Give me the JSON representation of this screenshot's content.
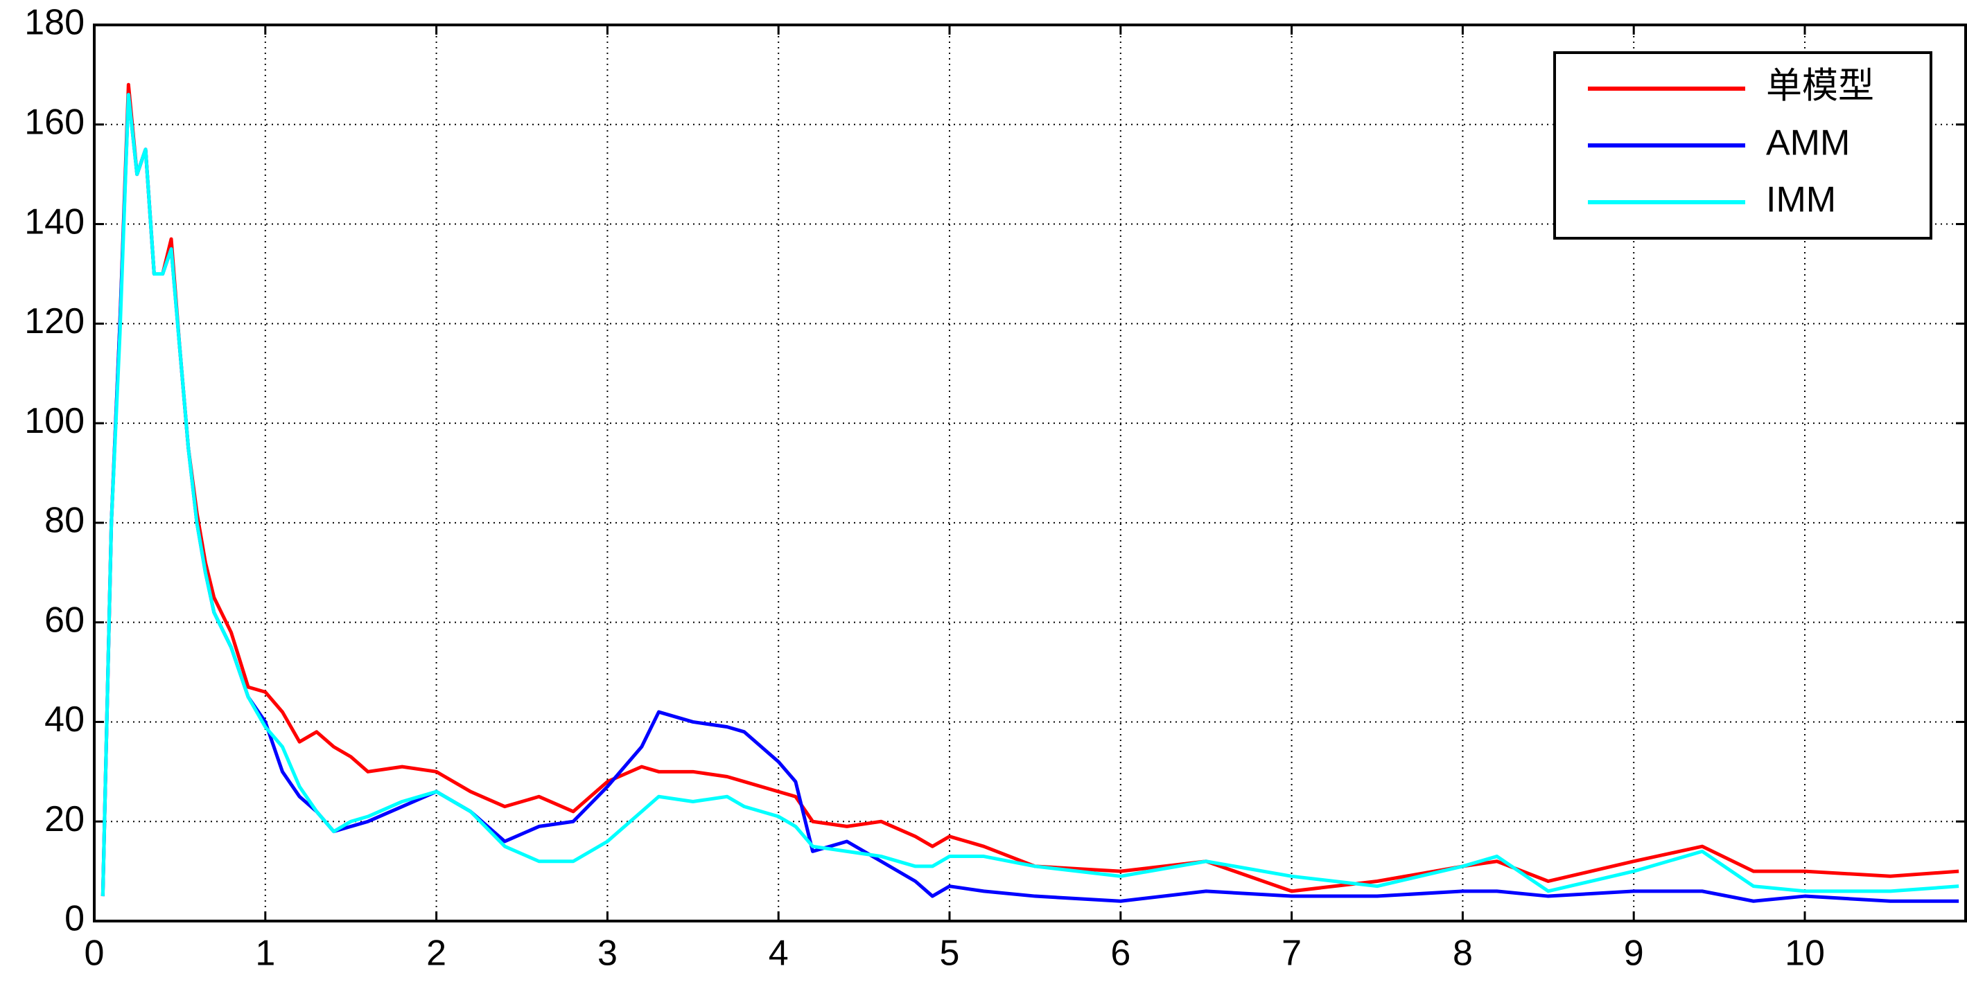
{
  "chart_data": {
    "type": "line",
    "x": [
      0.05,
      0.1,
      0.15,
      0.2,
      0.25,
      0.3,
      0.35,
      0.4,
      0.45,
      0.5,
      0.55,
      0.6,
      0.65,
      0.7,
      0.8,
      0.9,
      1.0,
      1.1,
      1.2,
      1.3,
      1.4,
      1.5,
      1.6,
      1.8,
      2.0,
      2.2,
      2.4,
      2.6,
      2.8,
      3.0,
      3.2,
      3.3,
      3.5,
      3.7,
      3.8,
      4.0,
      4.1,
      4.2,
      4.4,
      4.6,
      4.8,
      4.9,
      5.0,
      5.2,
      5.5,
      6.0,
      6.5,
      7.0,
      7.5,
      8.0,
      8.2,
      8.5,
      9.0,
      9.4,
      9.7,
      10.0,
      10.5,
      10.9
    ],
    "series": [
      {
        "name": "单模型",
        "color": "#ff0000",
        "values": [
          5,
          80,
          120,
          168,
          150,
          155,
          130,
          130,
          137,
          115,
          95,
          82,
          72,
          65,
          58,
          47,
          46,
          42,
          36,
          38,
          35,
          33,
          30,
          31,
          30,
          26,
          23,
          25,
          22,
          28,
          31,
          30,
          30,
          29,
          28,
          26,
          25,
          20,
          19,
          20,
          17,
          15,
          17,
          15,
          11,
          10,
          12,
          6,
          8,
          11,
          12,
          8,
          12,
          15,
          10,
          10,
          9,
          10
        ]
      },
      {
        "name": "AMM",
        "color": "#0000ff",
        "values": [
          5,
          80,
          120,
          166,
          150,
          155,
          130,
          130,
          135,
          115,
          95,
          80,
          70,
          62,
          55,
          45,
          40,
          30,
          25,
          22,
          18,
          19,
          20,
          23,
          26,
          22,
          16,
          19,
          20,
          27,
          35,
          42,
          40,
          39,
          38,
          32,
          28,
          14,
          16,
          12,
          8,
          5,
          7,
          6,
          5,
          4,
          6,
          5,
          5,
          6,
          6,
          5,
          6,
          6,
          4,
          5,
          4,
          4
        ]
      },
      {
        "name": "IMM",
        "color": "#00ffff",
        "values": [
          5,
          80,
          118,
          166,
          150,
          155,
          130,
          130,
          135,
          115,
          95,
          80,
          70,
          62,
          55,
          45,
          39,
          35,
          27,
          22,
          18,
          20,
          21,
          24,
          26,
          22,
          15,
          12,
          12,
          16,
          22,
          25,
          24,
          25,
          23,
          21,
          19,
          15,
          14,
          13,
          11,
          11,
          13,
          13,
          11,
          9,
          12,
          9,
          7,
          11,
          13,
          6,
          10,
          14,
          7,
          6,
          6,
          7
        ]
      }
    ],
    "xlim": [
      0,
      10.94
    ],
    "ylim": [
      0,
      180
    ],
    "xticks": [
      0,
      1,
      2,
      3,
      4,
      5,
      6,
      7,
      8,
      9,
      10
    ],
    "yticks": [
      0,
      20,
      40,
      60,
      80,
      100,
      120,
      140,
      160,
      180
    ],
    "grid": true,
    "legend": "upper right"
  }
}
